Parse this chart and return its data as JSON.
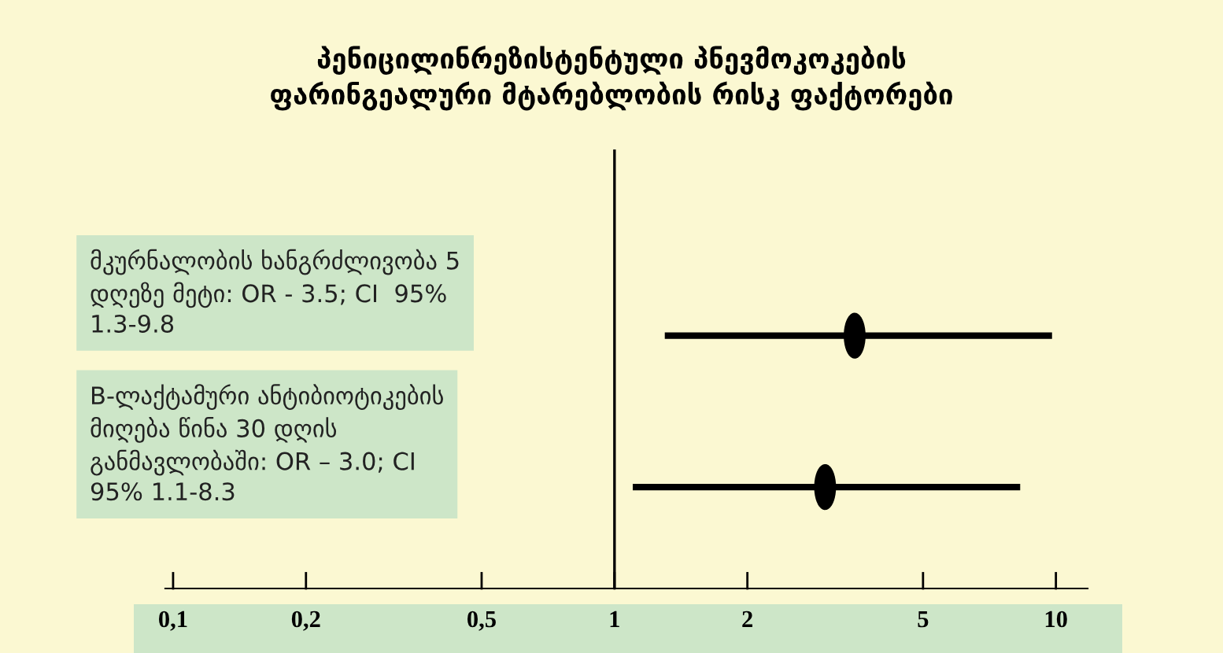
{
  "chart_data": {
    "type": "scatter",
    "orientation": "horizontal",
    "title": "პენიცილინრეზისტენტული პნევმოკოკების\nფარინგეალური მტარებლობის რისკ ფაქტორები",
    "categories": [
      "მკურნალობის ხანგრძლივობა 5\nდღეზე მეტი: OR - 3.5; CI  95%\n1.3-9.8",
      "B-ლაქტამური ანტიბიოტიკების\nმიღება წინა 30 დღის\nგანმავლობაში: OR – 3.0; CI\n95% 1.1-8.3"
    ],
    "values": [
      3.5,
      3.0
    ],
    "errors": [
      [
        1.3,
        9.8
      ],
      [
        1.1,
        8.3
      ]
    ],
    "color": "#000000",
    "log": "x",
    "xlim": [
      0.096,
      11.8
    ],
    "xticks": [
      {
        "value": 0.1,
        "label": "0,1"
      },
      {
        "value": 0.2,
        "label": "0,2"
      },
      {
        "value": 0.5,
        "label": "0,5"
      },
      {
        "value": 1,
        "label": "1"
      },
      {
        "value": 2,
        "label": "2"
      },
      {
        "value": 5,
        "label": "5"
      },
      {
        "value": 10,
        "label": "10"
      }
    ],
    "ref_lines": [
      {
        "axis": "x",
        "value": 1,
        "color": "#000000"
      }
    ],
    "marker": "circle",
    "grid": false,
    "legend": false
  }
}
